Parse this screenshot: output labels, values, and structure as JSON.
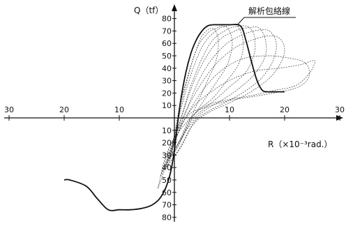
{
  "chart_data": {
    "type": "line",
    "x_ticks": [
      {
        "value": -30,
        "label": "30"
      },
      {
        "value": -20,
        "label": "20"
      },
      {
        "value": -10,
        "label": "10"
      },
      {
        "value": 10,
        "label": "10"
      },
      {
        "value": 20,
        "label": "20"
      },
      {
        "value": 30,
        "label": "30"
      }
    ],
    "y_ticks": [
      {
        "value": 80,
        "label": "80"
      },
      {
        "value": 70,
        "label": "70"
      },
      {
        "value": 60,
        "label": "60"
      },
      {
        "value": 50,
        "label": "50"
      },
      {
        "value": 40,
        "label": "40"
      },
      {
        "value": 30,
        "label": "30"
      },
      {
        "value": 20,
        "label": "20"
      },
      {
        "value": 10,
        "label": "10"
      },
      {
        "value": -10,
        "label": "10"
      },
      {
        "value": -20,
        "label": "20"
      },
      {
        "value": -30,
        "label": "30"
      },
      {
        "value": -40,
        "label": "40"
      },
      {
        "value": -50,
        "label": "50"
      },
      {
        "value": -60,
        "label": "60"
      },
      {
        "value": -70,
        "label": "70"
      },
      {
        "value": -80,
        "label": "80"
      }
    ],
    "xlabel": "R（×10⁻³rad.）",
    "ylabel": "Q（tf）",
    "xlim": [
      -30,
      30
    ],
    "ylim": [
      -80,
      80
    ],
    "grid": false,
    "annotation": "解析包絡線",
    "series": [
      {
        "name": "解析包絡線",
        "style": "solid",
        "x": [
          -20,
          -19,
          -16,
          -14,
          -12,
          -10,
          -8,
          -6,
          -4,
          -2.5,
          -1.2,
          -0.3,
          0.3,
          1,
          2,
          3,
          4,
          5,
          6,
          7,
          8,
          10,
          12,
          13,
          14,
          15,
          16,
          17,
          18,
          20
        ],
        "y": [
          -50,
          -50,
          -55,
          -65,
          -74,
          -74,
          -74,
          -73,
          -70,
          -64,
          -52,
          -35,
          -15,
          10,
          35,
          52,
          63,
          70,
          74,
          75,
          75,
          75,
          74,
          62,
          45,
          30,
          22,
          21,
          21,
          21
        ]
      },
      {
        "name": "",
        "style": "dashed",
        "x": [
          -0.5,
          0,
          1,
          2.5,
          4,
          5,
          6.5,
          7.5,
          8,
          7.5,
          6,
          5,
          4,
          3,
          1.5,
          0
        ],
        "y": [
          -28,
          -15,
          10,
          35,
          55,
          66,
          72,
          70,
          60,
          45,
          30,
          20,
          10,
          0,
          -15,
          -28
        ]
      },
      {
        "name": "",
        "style": "dashed",
        "x": [
          -0.5,
          0.5,
          2,
          4,
          6,
          7.5,
          9,
          10,
          10.5,
          9.5,
          7.5,
          5.5,
          4,
          2.5,
          1,
          -0.5
        ],
        "y": [
          -30,
          -5,
          25,
          55,
          68,
          72,
          74,
          70,
          58,
          42,
          28,
          15,
          5,
          -5,
          -18,
          -30
        ]
      },
      {
        "name": "",
        "style": "dashed",
        "x": [
          -1,
          0.5,
          2.5,
          5,
          7.5,
          9.5,
          11,
          12,
          12.5,
          11.5,
          9,
          7,
          4.5,
          2.5,
          1,
          -1
        ],
        "y": [
          -33,
          -5,
          28,
          57,
          70,
          74,
          75,
          70,
          57,
          42,
          27,
          16,
          7,
          -3,
          -18,
          -33
        ]
      },
      {
        "name": "",
        "style": "dashed",
        "x": [
          -1,
          1,
          3.5,
          6.5,
          9.5,
          12,
          13.5,
          14.5,
          14.5,
          13,
          10,
          7.5,
          5,
          3,
          1,
          -1
        ],
        "y": [
          -35,
          -3,
          32,
          60,
          71,
          74,
          73,
          66,
          52,
          37,
          25,
          15,
          6,
          -3,
          -20,
          -35
        ]
      },
      {
        "name": "",
        "style": "dashed",
        "x": [
          -1.5,
          1,
          4,
          7.5,
          11,
          14,
          15.5,
          16.5,
          16.5,
          14.5,
          11.5,
          8.5,
          5.5,
          3,
          0.5,
          -1.5
        ],
        "y": [
          -38,
          -3,
          34,
          60,
          70,
          73,
          72,
          63,
          50,
          35,
          23,
          14,
          6,
          -5,
          -22,
          -38
        ]
      },
      {
        "name": "",
        "style": "dashed",
        "x": [
          -1.5,
          1.5,
          5,
          9,
          13,
          16,
          17.5,
          18.5,
          18,
          16,
          13,
          9.5,
          6,
          3.5,
          1,
          -1.5
        ],
        "y": [
          -40,
          -2,
          35,
          58,
          68,
          71,
          69,
          60,
          47,
          33,
          22,
          13,
          5,
          -4,
          -24,
          -40
        ]
      },
      {
        "name": "",
        "style": "dashed",
        "x": [
          -2,
          1.5,
          6,
          10.5,
          15,
          18,
          19.5,
          20,
          19,
          17,
          13.5,
          10,
          6.5,
          3.5,
          1,
          -2
        ],
        "y": [
          -42,
          0,
          35,
          55,
          64,
          66,
          62,
          53,
          42,
          31,
          20,
          12,
          5,
          -5,
          -25,
          -42
        ]
      },
      {
        "name": "",
        "style": "dashed",
        "x": [
          -2.5,
          2,
          7,
          12,
          17,
          21,
          23.5,
          24.5,
          24,
          22,
          18,
          14,
          10,
          6,
          2.5,
          -0.5,
          -2.5
        ],
        "y": [
          -47,
          0,
          32,
          47,
          50,
          48,
          45,
          38,
          30,
          24,
          20,
          17,
          14,
          9,
          2,
          -20,
          -47
        ]
      },
      {
        "name": "",
        "style": "dashed",
        "x": [
          -3,
          2,
          8,
          14,
          19,
          23,
          25,
          25.5,
          24.5,
          22,
          18,
          14,
          9,
          5,
          1,
          -1.5,
          -3
        ],
        "y": [
          -57,
          0,
          25,
          37,
          40,
          43,
          46,
          45,
          36,
          26,
          22,
          18,
          14,
          8,
          -10,
          -30,
          -57
        ]
      }
    ]
  }
}
